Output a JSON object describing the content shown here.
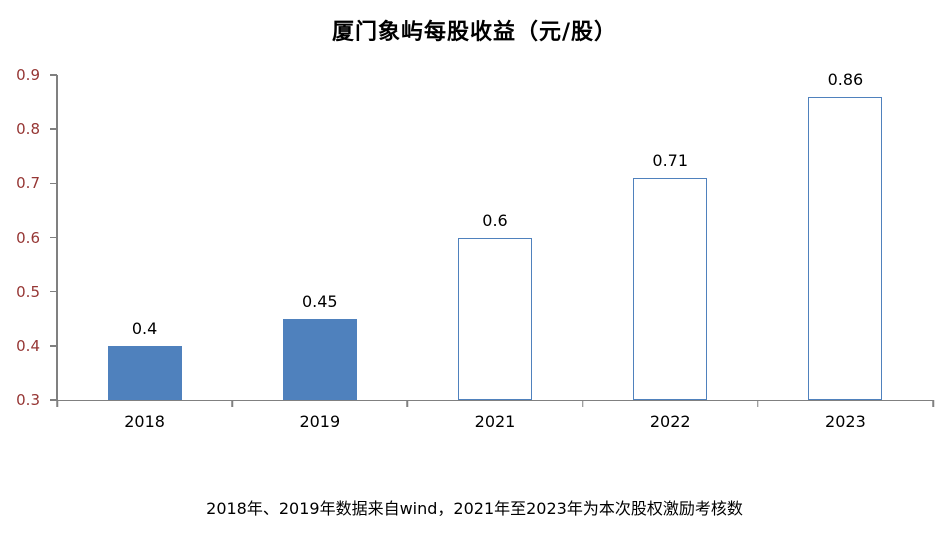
{
  "chart_data": {
    "type": "bar",
    "title": "厦门象屿每股收益（元/股）",
    "categories": [
      "2018",
      "2019",
      "2021",
      "2022",
      "2023"
    ],
    "values": [
      0.4,
      0.45,
      0.6,
      0.71,
      0.86
    ],
    "data_labels": [
      "0.4",
      "0.45",
      "0.6",
      "0.71",
      "0.86"
    ],
    "bar_styles": [
      "filled",
      "filled",
      "outlined",
      "outlined",
      "outlined"
    ],
    "ylim": [
      0.3,
      0.9
    ],
    "yticks": [
      0.3,
      0.4,
      0.5,
      0.6,
      0.7,
      0.8,
      0.9
    ],
    "ytick_labels": [
      "0.3",
      "0.4",
      "0.5",
      "0.6",
      "0.7",
      "0.8",
      "0.9"
    ],
    "grid": false,
    "legend_position": "none",
    "colors": {
      "bar_fill": "#4f81bd",
      "bar_outline": "#4f81bd",
      "ytick_text": "#963634",
      "xtick_text": "#000000",
      "axis_line": "#808080",
      "title_text": "#000000"
    }
  },
  "footer": {
    "note": "2018年、2019年数据来自wind，2021年至2023年为本次股权激励考核数"
  }
}
